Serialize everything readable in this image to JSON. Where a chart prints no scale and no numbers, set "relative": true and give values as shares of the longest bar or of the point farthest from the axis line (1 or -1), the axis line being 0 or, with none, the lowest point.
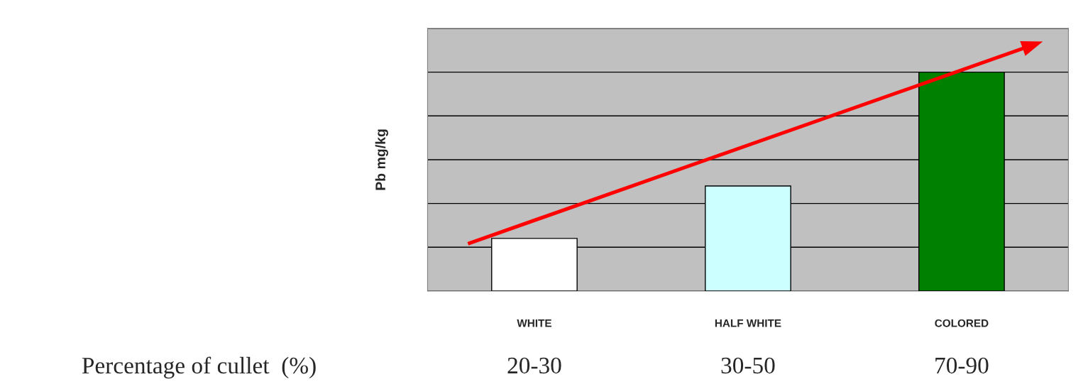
{
  "chart_data": {
    "type": "bar",
    "relative": true,
    "categories": [
      "WHITE",
      "HALF WHITE",
      "COLORED"
    ],
    "values": [
      0.24,
      0.48,
      1
    ],
    "colors": [
      "#ffffff",
      "#ccffff",
      "#008000"
    ],
    "ylabel": "Pb mg/kg",
    "xlabel": "Percentage of cullet  (%)",
    "annotations": [
      "20-30",
      "30-50",
      "70-90"
    ],
    "grid": "y"
  }
}
